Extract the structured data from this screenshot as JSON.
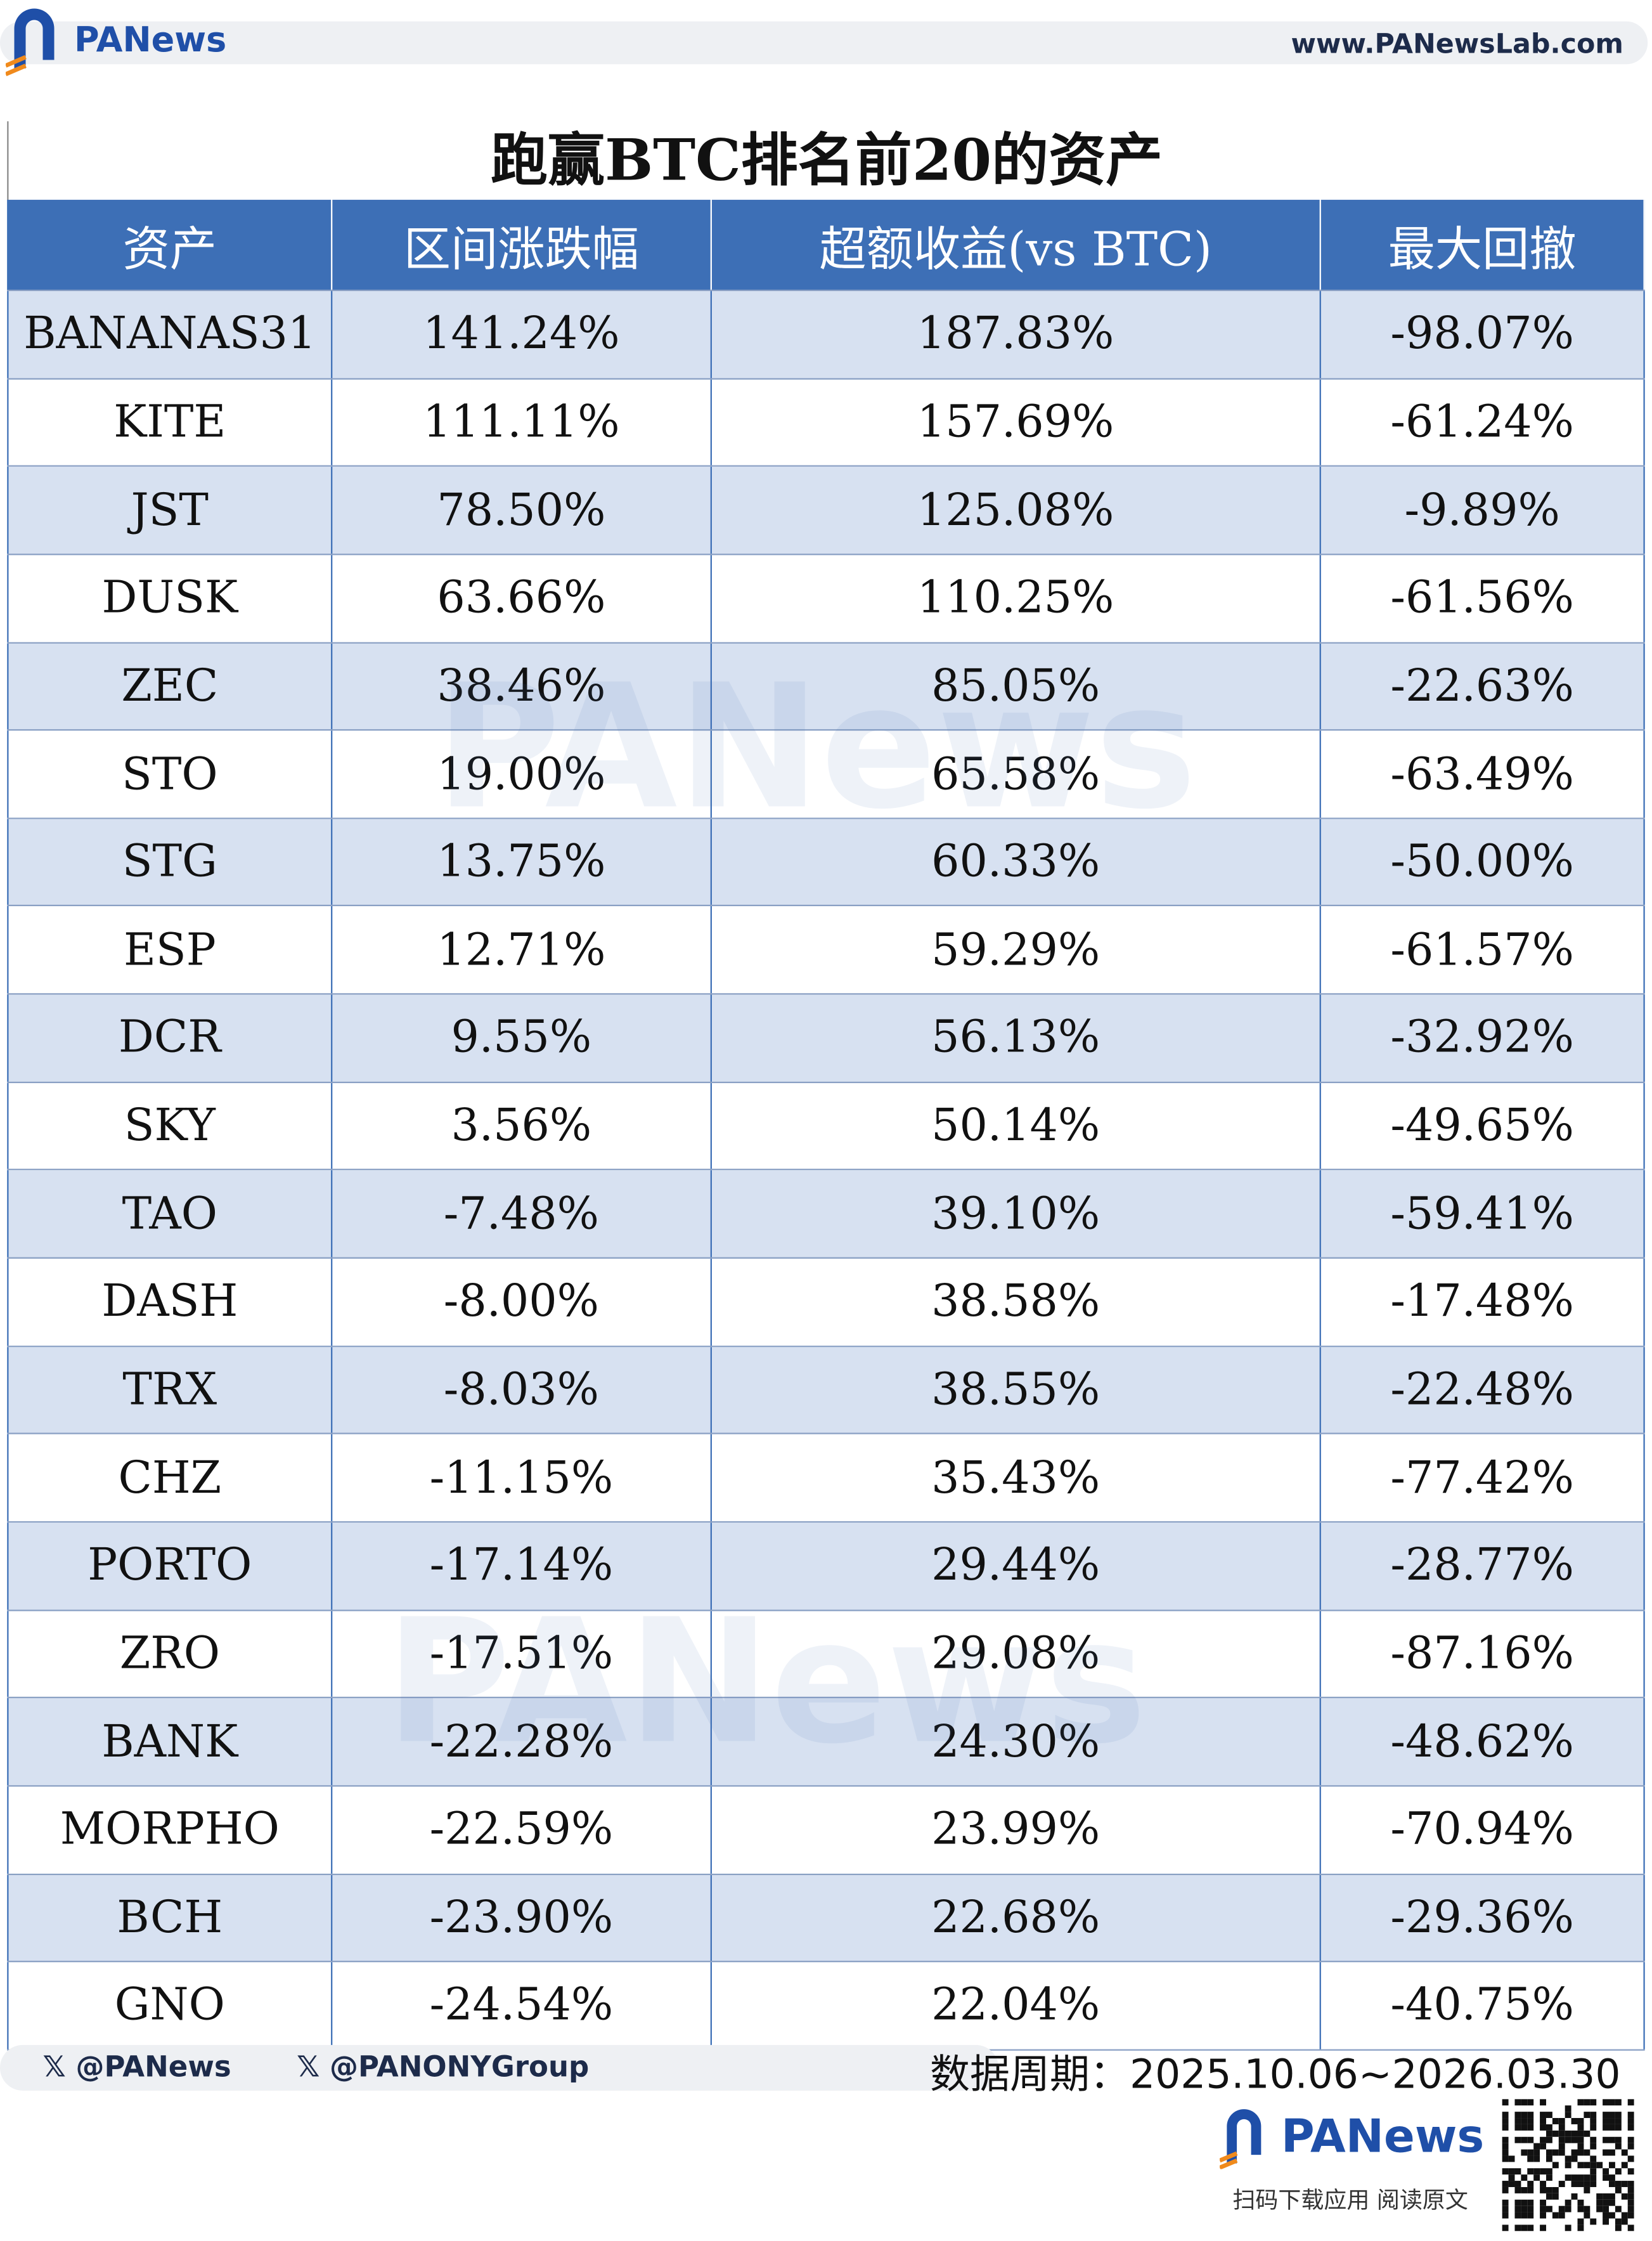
{
  "header": {
    "logo_text": "PANews",
    "url": "www.PANewsLab.com"
  },
  "watermark": "PANews",
  "table": {
    "title": "跑赢BTC排名前20的资产",
    "columns": [
      "资产",
      "区间涨跌幅",
      "超额收益(vs BTC)",
      "最大回撤"
    ],
    "rows": [
      [
        "BANANAS31",
        "141.24%",
        "187.83%",
        "-98.07%"
      ],
      [
        "KITE",
        "111.11%",
        "157.69%",
        "-61.24%"
      ],
      [
        "JST",
        "78.50%",
        "125.08%",
        "-9.89%"
      ],
      [
        "DUSK",
        "63.66%",
        "110.25%",
        "-61.56%"
      ],
      [
        "ZEC",
        "38.46%",
        "85.05%",
        "-22.63%"
      ],
      [
        "STO",
        "19.00%",
        "65.58%",
        "-63.49%"
      ],
      [
        "STG",
        "13.75%",
        "60.33%",
        "-50.00%"
      ],
      [
        "ESP",
        "12.71%",
        "59.29%",
        "-61.57%"
      ],
      [
        "DCR",
        "9.55%",
        "56.13%",
        "-32.92%"
      ],
      [
        "SKY",
        "3.56%",
        "50.14%",
        "-49.65%"
      ],
      [
        "TAO",
        "-7.48%",
        "39.10%",
        "-59.41%"
      ],
      [
        "DASH",
        "-8.00%",
        "38.58%",
        "-17.48%"
      ],
      [
        "TRX",
        "-8.03%",
        "38.55%",
        "-22.48%"
      ],
      [
        "CHZ",
        "-11.15%",
        "35.43%",
        "-77.42%"
      ],
      [
        "PORTO",
        "-17.14%",
        "29.44%",
        "-28.77%"
      ],
      [
        "ZRO",
        "-17.51%",
        "29.08%",
        "-87.16%"
      ],
      [
        "BANK",
        "-22.28%",
        "24.30%",
        "-48.62%"
      ],
      [
        "MORPHO",
        "-22.59%",
        "23.99%",
        "-70.94%"
      ],
      [
        "BCH",
        "-23.90%",
        "22.68%",
        "-29.36%"
      ],
      [
        "GNO",
        "-24.54%",
        "22.04%",
        "-40.75%"
      ]
    ]
  },
  "footer": {
    "handles": [
      "@PANews",
      "@PANONYGroup"
    ],
    "period": "数据周期：2025.10.06~2026.03.30",
    "logo_text": "PANews",
    "caption": "扫码下载应用 阅读原文"
  }
}
